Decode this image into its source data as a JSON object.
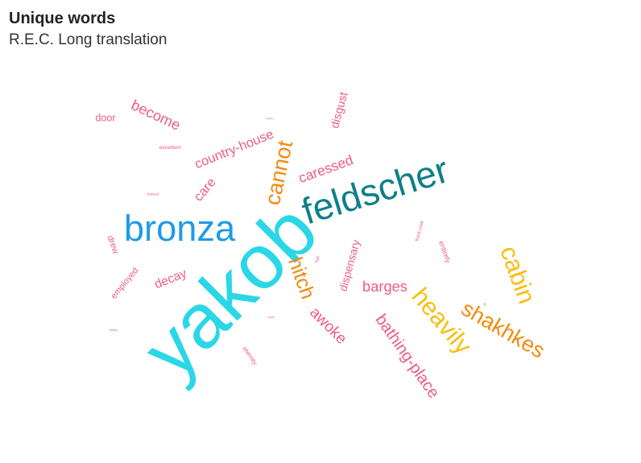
{
  "title": "Unique words",
  "subtitle": "R.E.C. Long translation",
  "colors": {
    "cyan": "#2ad7e6",
    "blue": "#1e9be6",
    "teal": "#0e7f88",
    "orange": "#f28a0e",
    "yellow": "#fbbd0f",
    "pink": "#ee5c82"
  },
  "chart_data": {
    "type": "wordcloud",
    "title": "Unique words",
    "subtitle": "R.E.C. Long translation",
    "words": [
      {
        "text": "yakob",
        "weight": 100,
        "color": "#2ad7e6"
      },
      {
        "text": "feldscher",
        "weight": 48,
        "color": "#0e7f88"
      },
      {
        "text": "bronza",
        "weight": 47,
        "color": "#1e9be6"
      },
      {
        "text": "cabin",
        "weight": 32,
        "color": "#fbbd0f"
      },
      {
        "text": "heavily",
        "weight": 32,
        "color": "#fbbd0f"
      },
      {
        "text": "cannot",
        "weight": 28,
        "color": "#f28a0e"
      },
      {
        "text": "shakhkes",
        "weight": 28,
        "color": "#f28a0e"
      },
      {
        "text": "hitch",
        "weight": 26,
        "color": "#f28a0e"
      },
      {
        "text": "bathing-place",
        "weight": 21,
        "color": "#ee5c82"
      },
      {
        "text": "awoke",
        "weight": 20,
        "color": "#ee5c82"
      },
      {
        "text": "become",
        "weight": 19,
        "color": "#ee5c82"
      },
      {
        "text": "barges",
        "weight": 19,
        "color": "#ee5c82"
      },
      {
        "text": "caressed",
        "weight": 18,
        "color": "#ee5c82"
      },
      {
        "text": "country-house",
        "weight": 17,
        "color": "#ee5c82"
      },
      {
        "text": "care",
        "weight": 17,
        "color": "#ee5c82"
      },
      {
        "text": "decay",
        "weight": 16,
        "color": "#ee5c82"
      },
      {
        "text": "disgust",
        "weight": 15,
        "color": "#ee5c82"
      },
      {
        "text": "dispensary",
        "weight": 14,
        "color": "#ee5c82"
      },
      {
        "text": "door",
        "weight": 13,
        "color": "#ee5c82"
      },
      {
        "text": "employed",
        "weight": 11,
        "color": "#ee5c82"
      },
      {
        "text": "drew",
        "weight": 11,
        "color": "#ee5c82"
      },
      {
        "text": "entirely",
        "weight": 9,
        "color": "#ee5c82"
      },
      {
        "text": "eternity",
        "weight": 8,
        "color": "#ee5c82"
      },
      {
        "text": "excellent",
        "weight": 7,
        "color": "#ee5c82"
      },
      {
        "text": "frock-coat",
        "weight": 6,
        "color": "#ee5c82"
      },
      {
        "text": "high",
        "weight": 5,
        "color": "#ee5c82"
      },
      {
        "text": "indeed",
        "weight": 5,
        "color": "#ee5c82"
      },
      {
        "text": "kept",
        "weight": 4,
        "color": "#ee5c82"
      },
      {
        "text": "kindly",
        "weight": 4,
        "color": "#ee5c82"
      },
      {
        "text": "happen",
        "weight": 3,
        "color": "#ee5c82"
      },
      {
        "text": "gift",
        "weight": 3,
        "color": "#ee5c82"
      }
    ]
  }
}
